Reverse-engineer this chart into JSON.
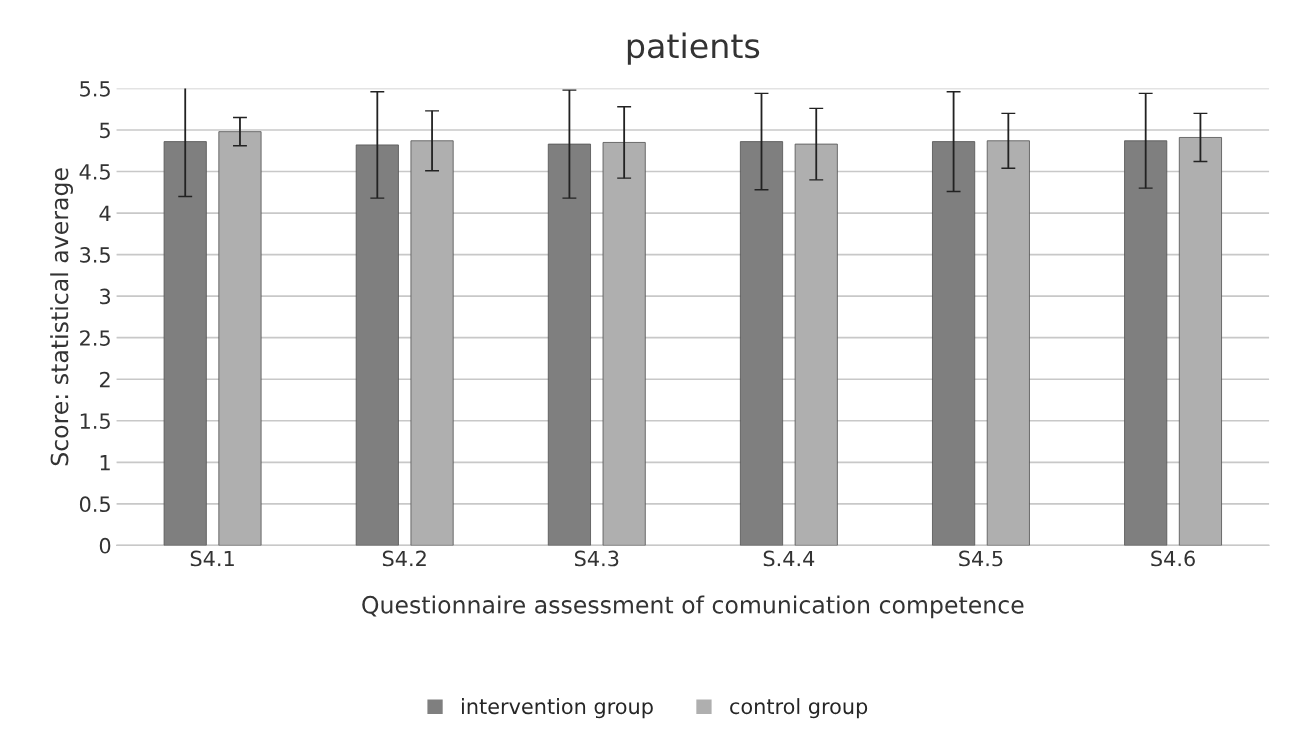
{
  "chart_data": {
    "type": "bar",
    "title": "patients",
    "xlabel": "Questionnaire assessment of comunication competence",
    "ylabel": "Score: statistical average",
    "categories": [
      "S4.1",
      "S4.2",
      "S4.3",
      "S.4.4",
      "S4.5",
      "S4.6"
    ],
    "series": [
      {
        "name": "intervention group",
        "color": "#7f7f7f",
        "values": [
          4.86,
          4.82,
          4.83,
          4.86,
          4.86,
          4.87
        ],
        "errors": [
          0.66,
          0.64,
          0.65,
          0.58,
          0.6,
          0.57
        ]
      },
      {
        "name": "control group",
        "color": "#afafaf",
        "values": [
          4.98,
          4.87,
          4.85,
          4.83,
          4.87,
          4.91
        ],
        "errors": [
          0.17,
          0.36,
          0.43,
          0.43,
          0.33,
          0.29
        ]
      }
    ],
    "ylim": [
      0,
      5.5
    ],
    "yticks": [
      0,
      0.5,
      1,
      1.5,
      2,
      2.5,
      3,
      3.5,
      4,
      4.5,
      5,
      5.5
    ],
    "grid": "y",
    "legend": "bottom"
  }
}
